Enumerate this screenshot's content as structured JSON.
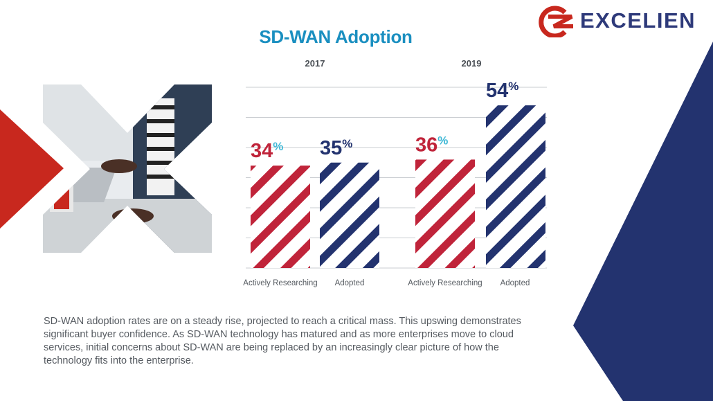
{
  "logo": {
    "text": "EXCELIEN",
    "mark": "CZ"
  },
  "colors": {
    "red": "#c0243a",
    "navy": "#23336f",
    "teal": "#1a8fc0",
    "accent_red": "#c8281e"
  },
  "description": "SD-WAN adoption rates are on a steady rise, projected to reach a critical mass. This upswing demonstrates significant buyer confidence. As SD-WAN technology has matured and as more enterprises move to cloud services, initial concerns about SD-WAN are being replaced by an increasingly clear picture of how the technology fits into the enterprise.",
  "chart_data": {
    "type": "bar",
    "title": "SD-WAN Adoption",
    "groups": [
      "2017",
      "2019"
    ],
    "categories": [
      "Actively Researching",
      "Adopted"
    ],
    "series": [
      {
        "group": "2017",
        "category": "Actively Researching",
        "value": 34,
        "label": "34",
        "unit": "%",
        "color": "#c0243a"
      },
      {
        "group": "2017",
        "category": "Adopted",
        "value": 35,
        "label": "35",
        "unit": "%",
        "color": "#23336f"
      },
      {
        "group": "2019",
        "category": "Actively Researching",
        "value": 36,
        "label": "36",
        "unit": "%",
        "color": "#c0243a"
      },
      {
        "group": "2019",
        "category": "Adopted",
        "value": 54,
        "label": "54",
        "unit": "%",
        "color": "#23336f"
      }
    ],
    "ylim": [
      0,
      60
    ],
    "grid": true
  }
}
